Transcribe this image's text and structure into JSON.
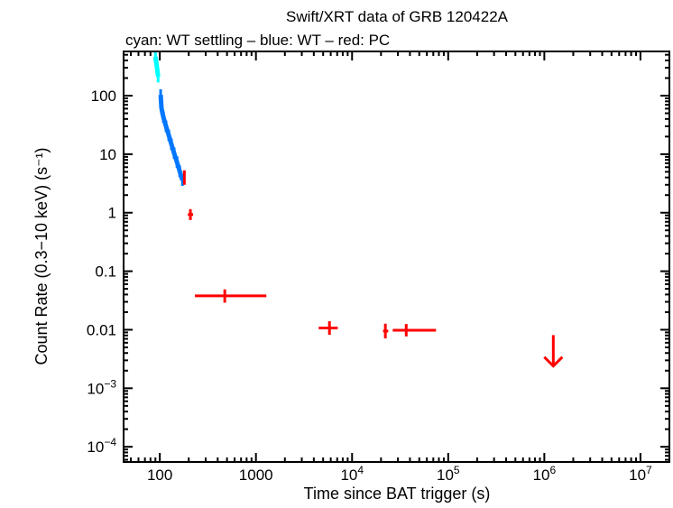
{
  "chart_data": {
    "type": "scatter",
    "title": "Swift/XRT data of GRB 120422A",
    "subtitle": "cyan: WT settling – blue: WT – red: PC",
    "xlabel": "Time since BAT trigger (s)",
    "ylabel": "Count Rate (0.3−10 keV) (s⁻¹)",
    "xscale": "log",
    "yscale": "log",
    "xlim": [
      42,
      20000000
    ],
    "ylim": [
      5.5e-05,
      570
    ],
    "grid": false,
    "x_ticks": [
      {
        "value": 100,
        "label": "100"
      },
      {
        "value": 1000,
        "label": "1000"
      },
      {
        "value": 10000,
        "base": "10",
        "exp": "4"
      },
      {
        "value": 100000,
        "base": "10",
        "exp": "5"
      },
      {
        "value": 1000000,
        "base": "10",
        "exp": "6"
      },
      {
        "value": 10000000,
        "base": "10",
        "exp": "7"
      }
    ],
    "y_ticks": [
      {
        "value": 100,
        "label": "100"
      },
      {
        "value": 10,
        "label": "10"
      },
      {
        "value": 1,
        "label": "1"
      },
      {
        "value": 0.1,
        "label": "0.1"
      },
      {
        "value": 0.01,
        "label": "0.01"
      },
      {
        "value": 0.001,
        "base": "10",
        "exp": "−3"
      },
      {
        "value": 0.0001,
        "base": "10",
        "exp": "−4"
      }
    ],
    "series": [
      {
        "name": "WT settling",
        "color": "#00ffff",
        "style": "band",
        "points": [
          [
            90,
            460
          ],
          [
            93,
            320
          ],
          [
            96,
            210
          ]
        ]
      },
      {
        "name": "WT",
        "color": "#0077ff",
        "style": "band",
        "points": [
          [
            102,
            103
          ],
          [
            104,
            61
          ],
          [
            109,
            43
          ],
          [
            116,
            30
          ],
          [
            124,
            21
          ],
          [
            132,
            14.8
          ],
          [
            141,
            10.4
          ],
          [
            151,
            7.3
          ],
          [
            161,
            5.1
          ],
          [
            172,
            3.6
          ]
        ]
      },
      {
        "name": "PC",
        "color": "#ff0000",
        "style": "errorbar",
        "points": [
          {
            "x": 180,
            "y": 4.1,
            "xlo": 177,
            "xhi": 184,
            "ylo": 3.0,
            "yhi": 5.3
          },
          {
            "x": 208,
            "y": 0.93,
            "xlo": 196,
            "xhi": 222,
            "ylo": 0.75,
            "yhi": 1.15
          },
          {
            "x": 474,
            "y": 0.038,
            "xlo": 232,
            "xhi": 1283,
            "ylo": 0.029,
            "yhi": 0.049
          },
          {
            "x": 5820,
            "y": 0.0107,
            "xlo": 4500,
            "xhi": 7100,
            "ylo": 0.0082,
            "yhi": 0.014
          },
          {
            "x": 22200,
            "y": 0.0095,
            "xlo": 21000,
            "xhi": 23800,
            "ylo": 0.0071,
            "yhi": 0.0127
          },
          {
            "x": 36600,
            "y": 0.0098,
            "xlo": 26500,
            "xhi": 74700,
            "ylo": 0.0077,
            "yhi": 0.0125
          }
        ]
      },
      {
        "name": "PC upper limit",
        "color": "#ff0000",
        "style": "upper-limit",
        "points": [
          {
            "x": 1240000,
            "y": 0.0081,
            "tip": 0.0024
          }
        ]
      }
    ]
  }
}
